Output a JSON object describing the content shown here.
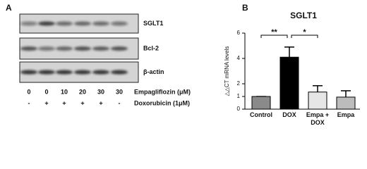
{
  "panel_a": {
    "letter": "A",
    "blot_rows": [
      "SGLT1",
      "Bcl-2",
      "β-actin"
    ],
    "treatments": [
      {
        "label": "Empagliflozin (μM)",
        "lanes": [
          "0",
          "0",
          "10",
          "20",
          "30",
          "30"
        ]
      },
      {
        "label": "Doxorubicin (1μM)",
        "lanes": [
          "-",
          "+",
          "+",
          "+",
          "+",
          "-"
        ]
      }
    ]
  },
  "panel_b": {
    "letter": "B"
  },
  "chart_data": {
    "type": "bar",
    "title": "SGLT1",
    "y_label": "△△CT mRNA levels",
    "categories": [
      "Control",
      "DOX",
      "Empa + DOX",
      "Empa"
    ],
    "values": [
      1,
      4.1,
      1.35,
      0.95
    ],
    "errors": [
      0,
      0.8,
      0.5,
      0.5
    ],
    "colors": [
      "#8a8a8a",
      "#000000",
      "#e6e6e6",
      "#bcbcbc"
    ],
    "ylim": [
      0,
      6
    ],
    "yticks": [
      0,
      1,
      2,
      4,
      6
    ],
    "significance": [
      {
        "text": "**",
        "between": [
          "Control",
          "DOX"
        ]
      },
      {
        "text": "*",
        "between": [
          "DOX",
          "Empa + DOX"
        ]
      }
    ]
  }
}
